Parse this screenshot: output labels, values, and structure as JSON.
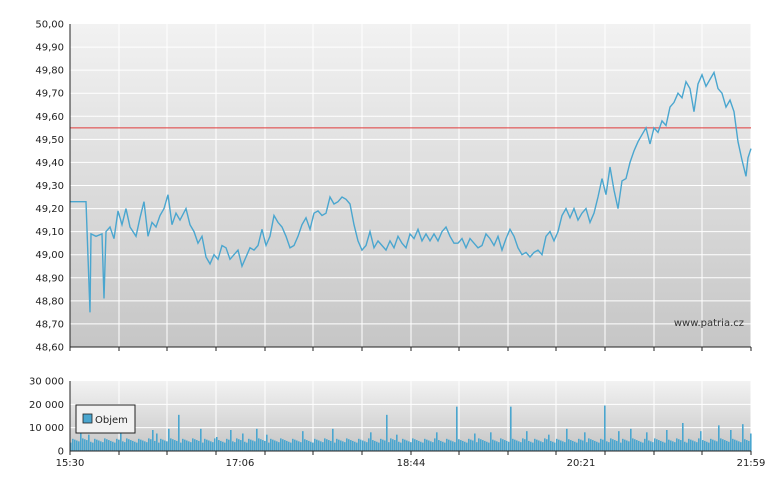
{
  "watermark": "www.patria.cz",
  "legend_label": "Objem",
  "colors": {
    "price_line": "#4aa6cf",
    "reference_line": "#e03a3a",
    "volume_bar": "#4aa6cf",
    "grid": "#ffffff",
    "plot_top": "#f0f0f0",
    "plot_bottom": "#c8c8c8"
  },
  "chart_data": [
    {
      "type": "line",
      "name": "price",
      "ylim": [
        48.6,
        50.0
      ],
      "y_ticks": [
        "50,00",
        "49,90",
        "49,80",
        "49,70",
        "49,60",
        "49,50",
        "49,40",
        "49,30",
        "49,20",
        "49,10",
        "49,00",
        "48,90",
        "48,80",
        "48,70",
        "48,60"
      ],
      "reference_value": 49.55,
      "x_ticks": [
        "15:30",
        "17:06",
        "18:44",
        "20:21",
        "21:59"
      ],
      "points": [
        [
          0,
          49.23
        ],
        [
          16,
          49.23
        ],
        [
          20,
          48.75
        ],
        [
          21,
          49.09
        ],
        [
          26,
          49.08
        ],
        [
          32,
          49.09
        ],
        [
          34,
          48.81
        ],
        [
          36,
          49.1
        ],
        [
          40,
          49.12
        ],
        [
          44,
          49.07
        ],
        [
          48,
          49.19
        ],
        [
          52,
          49.13
        ],
        [
          56,
          49.2
        ],
        [
          60,
          49.12
        ],
        [
          66,
          49.08
        ],
        [
          70,
          49.16
        ],
        [
          74,
          49.23
        ],
        [
          78,
          49.08
        ],
        [
          82,
          49.14
        ],
        [
          86,
          49.12
        ],
        [
          90,
          49.17
        ],
        [
          94,
          49.2
        ],
        [
          98,
          49.26
        ],
        [
          102,
          49.13
        ],
        [
          106,
          49.18
        ],
        [
          110,
          49.15
        ],
        [
          116,
          49.2
        ],
        [
          120,
          49.13
        ],
        [
          124,
          49.1
        ],
        [
          128,
          49.05
        ],
        [
          132,
          49.08
        ],
        [
          136,
          48.99
        ],
        [
          140,
          48.96
        ],
        [
          144,
          49.0
        ],
        [
          148,
          48.98
        ],
        [
          152,
          49.04
        ],
        [
          156,
          49.03
        ],
        [
          160,
          48.98
        ],
        [
          164,
          49.0
        ],
        [
          168,
          49.02
        ],
        [
          172,
          48.95
        ],
        [
          176,
          48.99
        ],
        [
          180,
          49.03
        ],
        [
          184,
          49.02
        ],
        [
          188,
          49.04
        ],
        [
          192,
          49.11
        ],
        [
          196,
          49.04
        ],
        [
          200,
          49.08
        ],
        [
          204,
          49.17
        ],
        [
          208,
          49.14
        ],
        [
          212,
          49.12
        ],
        [
          216,
          49.08
        ],
        [
          220,
          49.03
        ],
        [
          224,
          49.04
        ],
        [
          228,
          49.08
        ],
        [
          232,
          49.13
        ],
        [
          236,
          49.16
        ],
        [
          240,
          49.11
        ],
        [
          244,
          49.18
        ],
        [
          248,
          49.19
        ],
        [
          252,
          49.17
        ],
        [
          256,
          49.18
        ],
        [
          260,
          49.25
        ],
        [
          264,
          49.22
        ],
        [
          268,
          49.23
        ],
        [
          272,
          49.25
        ],
        [
          276,
          49.24
        ],
        [
          280,
          49.22
        ],
        [
          284,
          49.13
        ],
        [
          288,
          49.06
        ],
        [
          292,
          49.02
        ],
        [
          296,
          49.04
        ],
        [
          300,
          49.1
        ],
        [
          304,
          49.03
        ],
        [
          308,
          49.06
        ],
        [
          312,
          49.04
        ],
        [
          316,
          49.02
        ],
        [
          320,
          49.06
        ],
        [
          324,
          49.03
        ],
        [
          328,
          49.08
        ],
        [
          332,
          49.05
        ],
        [
          336,
          49.03
        ],
        [
          340,
          49.09
        ],
        [
          344,
          49.07
        ],
        [
          348,
          49.11
        ],
        [
          352,
          49.06
        ],
        [
          356,
          49.09
        ],
        [
          360,
          49.06
        ],
        [
          364,
          49.09
        ],
        [
          368,
          49.06
        ],
        [
          372,
          49.1
        ],
        [
          376,
          49.12
        ],
        [
          380,
          49.08
        ],
        [
          384,
          49.05
        ],
        [
          388,
          49.05
        ],
        [
          392,
          49.07
        ],
        [
          396,
          49.03
        ],
        [
          400,
          49.07
        ],
        [
          404,
          49.05
        ],
        [
          408,
          49.03
        ],
        [
          412,
          49.04
        ],
        [
          416,
          49.09
        ],
        [
          420,
          49.07
        ],
        [
          424,
          49.04
        ],
        [
          428,
          49.08
        ],
        [
          432,
          49.02
        ],
        [
          436,
          49.07
        ],
        [
          440,
          49.11
        ],
        [
          444,
          49.08
        ],
        [
          448,
          49.03
        ],
        [
          452,
          49.0
        ],
        [
          456,
          49.01
        ],
        [
          460,
          48.99
        ],
        [
          464,
          49.01
        ],
        [
          468,
          49.02
        ],
        [
          472,
          49.0
        ],
        [
          476,
          49.08
        ],
        [
          480,
          49.1
        ],
        [
          484,
          49.06
        ],
        [
          488,
          49.1
        ],
        [
          492,
          49.17
        ],
        [
          496,
          49.2
        ],
        [
          500,
          49.16
        ],
        [
          504,
          49.2
        ],
        [
          508,
          49.15
        ],
        [
          512,
          49.18
        ],
        [
          516,
          49.2
        ],
        [
          520,
          49.14
        ],
        [
          524,
          49.18
        ],
        [
          528,
          49.25
        ],
        [
          532,
          49.33
        ],
        [
          536,
          49.26
        ],
        [
          540,
          49.38
        ],
        [
          544,
          49.28
        ],
        [
          548,
          49.2
        ],
        [
          552,
          49.32
        ],
        [
          556,
          49.33
        ],
        [
          560,
          49.4
        ],
        [
          564,
          49.45
        ],
        [
          568,
          49.49
        ],
        [
          572,
          49.52
        ],
        [
          576,
          49.55
        ],
        [
          580,
          49.48
        ],
        [
          584,
          49.55
        ],
        [
          588,
          49.53
        ],
        [
          592,
          49.58
        ],
        [
          596,
          49.56
        ],
        [
          600,
          49.64
        ],
        [
          604,
          49.66
        ],
        [
          608,
          49.7
        ],
        [
          612,
          49.68
        ],
        [
          616,
          49.75
        ],
        [
          620,
          49.72
        ],
        [
          624,
          49.62
        ],
        [
          628,
          49.74
        ],
        [
          632,
          49.78
        ],
        [
          636,
          49.73
        ],
        [
          640,
          49.76
        ],
        [
          644,
          49.79
        ],
        [
          648,
          49.72
        ],
        [
          652,
          49.7
        ],
        [
          656,
          49.64
        ],
        [
          660,
          49.67
        ],
        [
          664,
          49.62
        ],
        [
          668,
          49.49
        ],
        [
          672,
          49.41
        ],
        [
          676,
          49.34
        ],
        [
          678,
          49.42
        ],
        [
          681,
          49.46
        ]
      ]
    },
    {
      "type": "bar",
      "name": "Objem",
      "ylim": [
        0,
        30000
      ],
      "y_ticks": [
        "30 000",
        "20 000",
        "10 000",
        "0"
      ],
      "x_ticks": [
        "15:30",
        "17:06",
        "18:44",
        "20:21",
        "21:59"
      ],
      "base_volume": 4500,
      "spikes": [
        [
          10,
          9000
        ],
        [
          18,
          7000
        ],
        [
          35,
          10000
        ],
        [
          50,
          8500
        ],
        [
          82,
          9000
        ],
        [
          86,
          7500
        ],
        [
          98,
          9500
        ],
        [
          108,
          15500
        ],
        [
          130,
          9500
        ],
        [
          146,
          6000
        ],
        [
          160,
          9000
        ],
        [
          172,
          7500
        ],
        [
          186,
          9500
        ],
        [
          196,
          7000
        ],
        [
          232,
          8500
        ],
        [
          262,
          9500
        ],
        [
          285,
          20500
        ],
        [
          300,
          8000
        ],
        [
          316,
          15500
        ],
        [
          326,
          7000
        ],
        [
          345,
          9000
        ],
        [
          366,
          8000
        ],
        [
          386,
          19000
        ],
        [
          404,
          7500
        ],
        [
          420,
          8000
        ],
        [
          440,
          19000
        ],
        [
          456,
          8500
        ],
        [
          478,
          7000
        ],
        [
          496,
          9500
        ],
        [
          514,
          8000
        ],
        [
          534,
          19500
        ],
        [
          548,
          8500
        ],
        [
          560,
          9500
        ],
        [
          576,
          8000
        ],
        [
          596,
          9000
        ],
        [
          612,
          12000
        ],
        [
          630,
          8500
        ],
        [
          648,
          11000
        ],
        [
          660,
          9000
        ],
        [
          672,
          11500
        ],
        [
          680,
          7500
        ]
      ]
    }
  ]
}
